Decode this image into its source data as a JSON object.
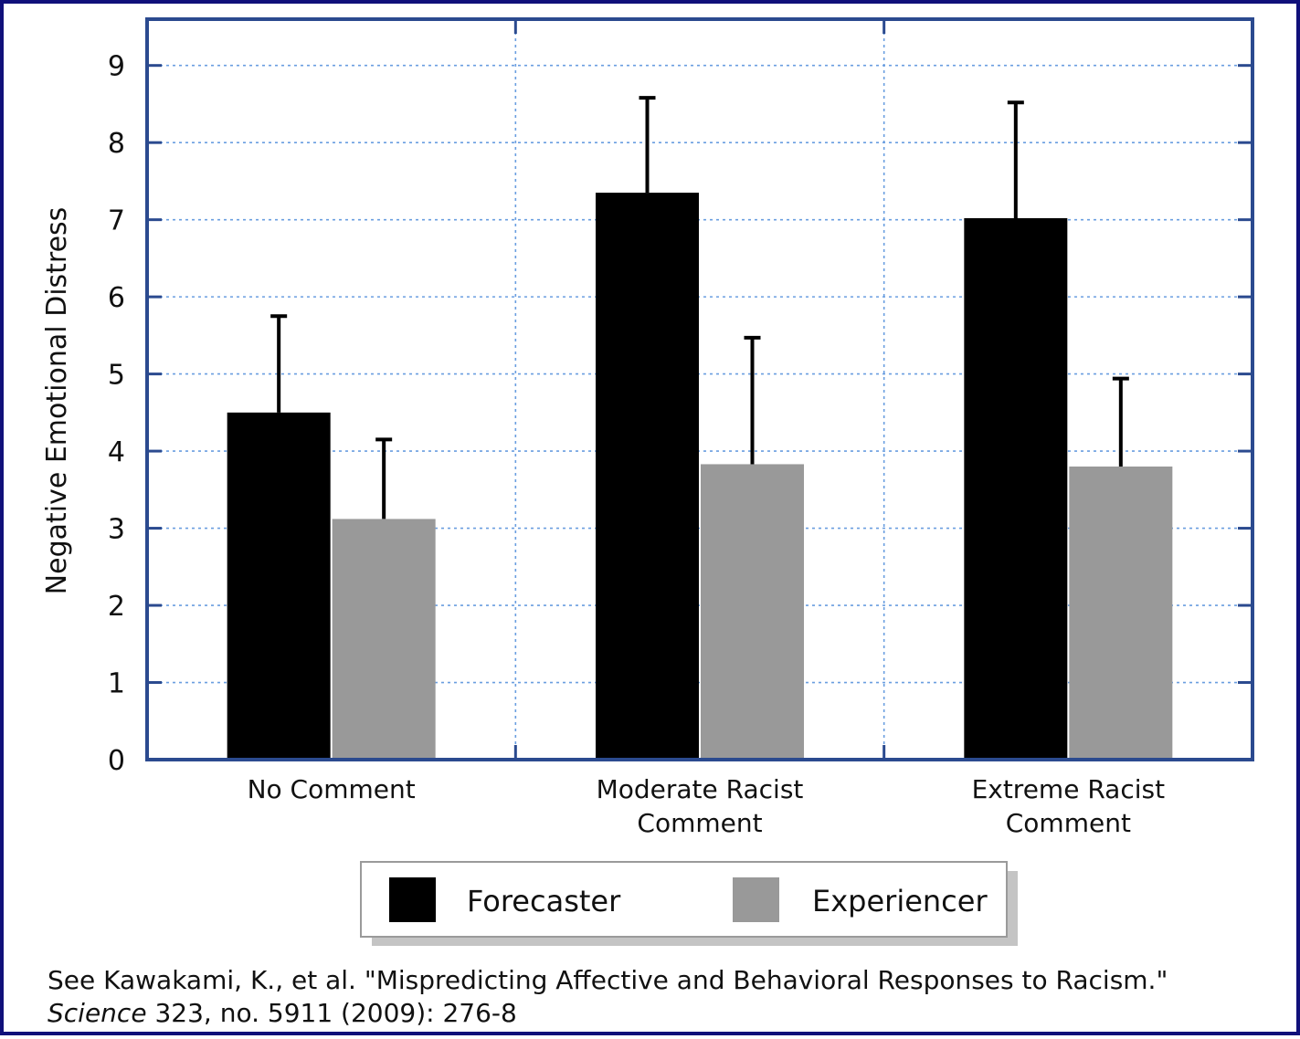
{
  "chart_data": {
    "type": "bar",
    "title": "",
    "xlabel": "",
    "ylabel": "Negative Emotional Distress",
    "ylim": [
      0,
      9.6
    ],
    "yticks": [
      "0",
      "1",
      "2",
      "3",
      "4",
      "5",
      "6",
      "7",
      "8",
      "9"
    ],
    "categories": [
      [
        "No Comment"
      ],
      [
        "Moderate Racist",
        "Comment"
      ],
      [
        "Extreme Racist",
        "Comment"
      ]
    ],
    "series": [
      {
        "name": "Forecaster",
        "color": "#000000",
        "values": [
          4.5,
          7.35,
          7.02
        ],
        "error_upper": [
          5.75,
          8.58,
          8.52
        ]
      },
      {
        "name": "Experiencer",
        "color": "#999999",
        "values": [
          3.12,
          3.83,
          3.8
        ],
        "error_upper": [
          4.15,
          5.47,
          4.94
        ]
      }
    ],
    "grid": true,
    "legend_position": "bottom-center",
    "frame_color": "#2b4a8f",
    "grid_color": "#6a9ee0"
  },
  "citation": {
    "line1": "See Kawakami, K., et al. \"Mispredicting Affective and Behavioral Responses to Racism.\"",
    "journal": "Science",
    "line2_rest": " 323, no. 5911 (2009): 276-8"
  },
  "page_border_color": "#10107a"
}
